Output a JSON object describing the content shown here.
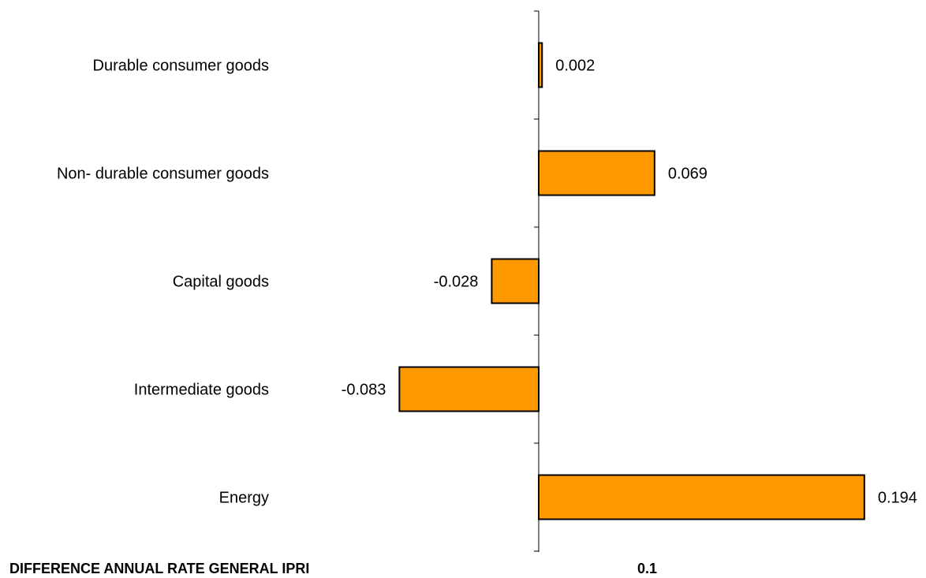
{
  "chart_data": {
    "type": "bar",
    "orientation": "horizontal",
    "categories": [
      "Durable consumer goods",
      "Non- durable consumer goods",
      "Capital goods",
      "Intermediate goods",
      "Energy"
    ],
    "values": [
      0.002,
      0.069,
      -0.028,
      -0.083,
      0.194
    ],
    "value_labels": [
      "0.002",
      "0.069",
      "-0.028",
      "-0.083",
      "0.194"
    ],
    "title": "",
    "xlabel": "",
    "ylabel": "",
    "grid": false,
    "legend": "none",
    "bar_color": "#FF9900",
    "bar_border_color": "#000000",
    "footer": {
      "label": "DIFFERENCE ANNUAL RATE GENERAL IPRI",
      "value": "0.1"
    }
  }
}
